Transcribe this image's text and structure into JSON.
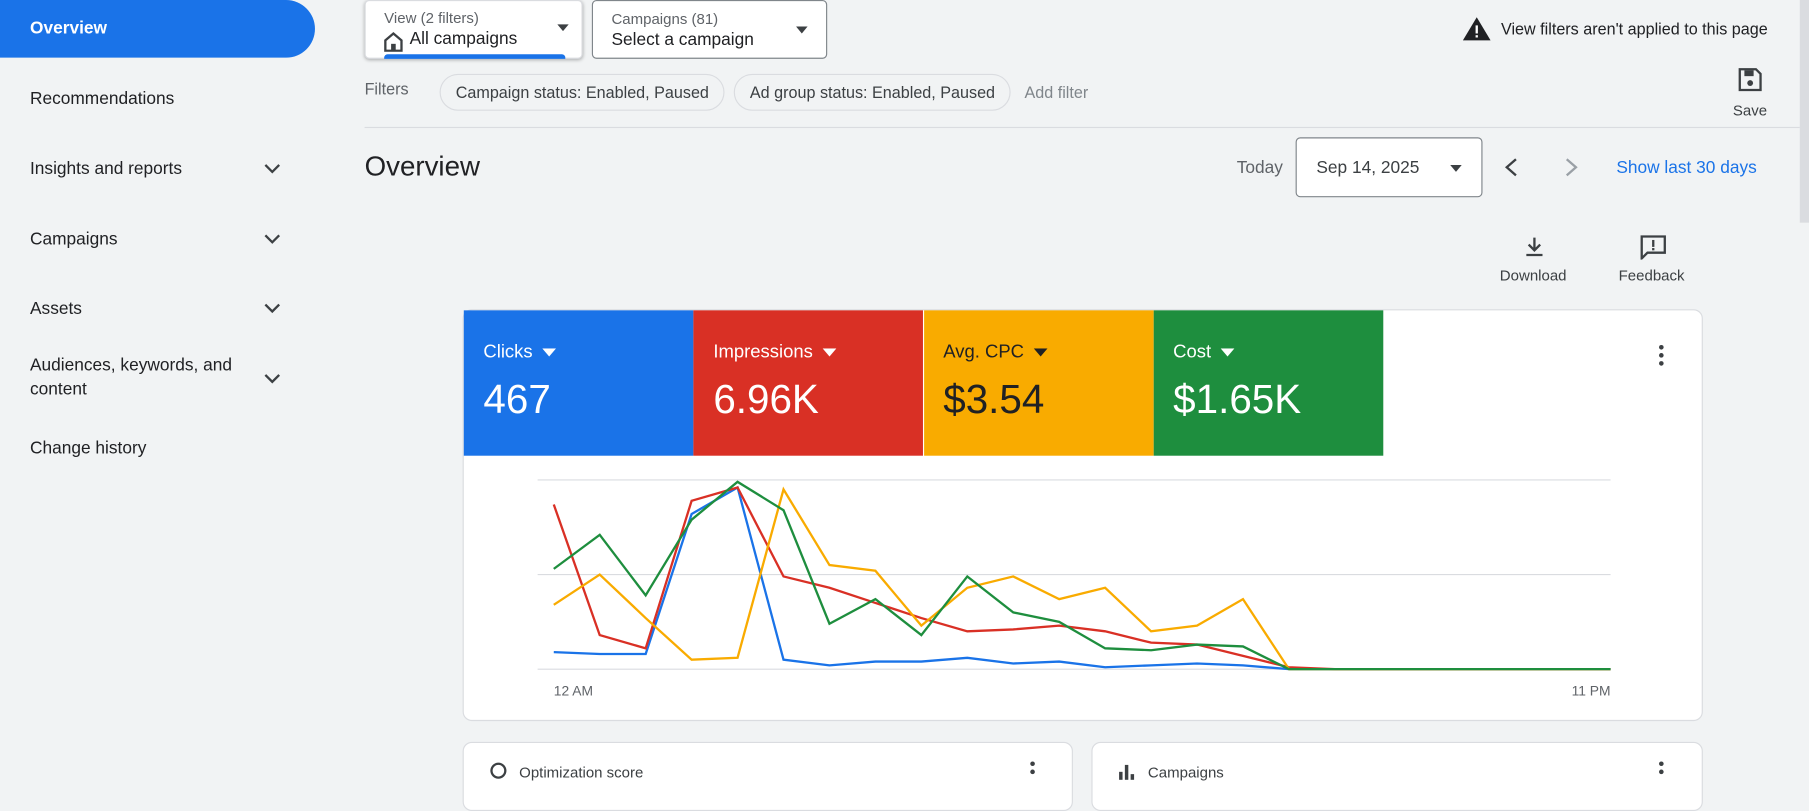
{
  "sidebar": {
    "items": [
      "Overview",
      "Recommendations",
      "Insights and reports",
      "Campaigns",
      "Assets",
      "Audiences, keywords, and content",
      "Change history"
    ]
  },
  "toolbar": {
    "view_label": "View (2 filters)",
    "view_value": "All campaigns",
    "campaigns_label": "Campaigns (81)",
    "campaigns_value": "Select a campaign",
    "warning": "View filters aren't applied to this page",
    "filters_label": "Filters",
    "filters": [
      "Campaign status: Enabled, Paused",
      "Ad group status: Enabled, Paused"
    ],
    "add_filter": "Add filter",
    "save": "Save"
  },
  "header": {
    "title": "Overview",
    "today": "Today",
    "date": "Sep 14, 2025",
    "show_last": "Show last 30 days",
    "download": "Download",
    "feedback": "Feedback"
  },
  "chart_data": {
    "type": "line",
    "categories": [
      "12 AM",
      null,
      null,
      null,
      null,
      null,
      null,
      null,
      null,
      null,
      null,
      null,
      null,
      null,
      null,
      null,
      null,
      null,
      null,
      null,
      null,
      null,
      null,
      "11 PM"
    ],
    "series": [
      {
        "name": "Clicks",
        "summary": "467",
        "color": "#1a73e8",
        "values": [
          9,
          8,
          8,
          82,
          96,
          5,
          2,
          4,
          4,
          6,
          3,
          4,
          1,
          2,
          3,
          2,
          0,
          0,
          0,
          0,
          0,
          0,
          0,
          0
        ]
      },
      {
        "name": "Impressions",
        "summary": "6.96K",
        "color": "#d93025",
        "values": [
          87,
          18,
          11,
          89,
          96,
          49,
          43,
          35,
          27,
          20,
          21,
          23,
          20,
          14,
          13,
          7,
          1,
          0,
          0,
          0,
          0,
          0,
          0,
          0
        ]
      },
      {
        "name": "Avg. CPC",
        "summary": "$3.54",
        "color": "#f9ab00",
        "values": [
          34,
          50,
          27,
          5,
          6,
          95,
          55,
          52,
          23,
          43,
          49,
          37,
          43,
          20,
          23,
          37,
          0,
          0,
          0,
          0,
          0,
          0,
          0,
          0
        ]
      },
      {
        "name": "Cost",
        "summary": "$1.65K",
        "color": "#1e8e3e",
        "values": [
          53,
          71,
          39,
          79,
          99,
          84,
          24,
          37,
          18,
          49,
          30,
          25,
          11,
          10,
          13,
          12,
          0,
          0,
          0,
          0,
          0,
          0,
          0,
          0
        ]
      }
    ],
    "ylim": [
      0,
      100
    ],
    "gridlines": [
      0,
      50,
      100
    ]
  },
  "cards": [
    "Optimization score",
    "Campaigns"
  ]
}
